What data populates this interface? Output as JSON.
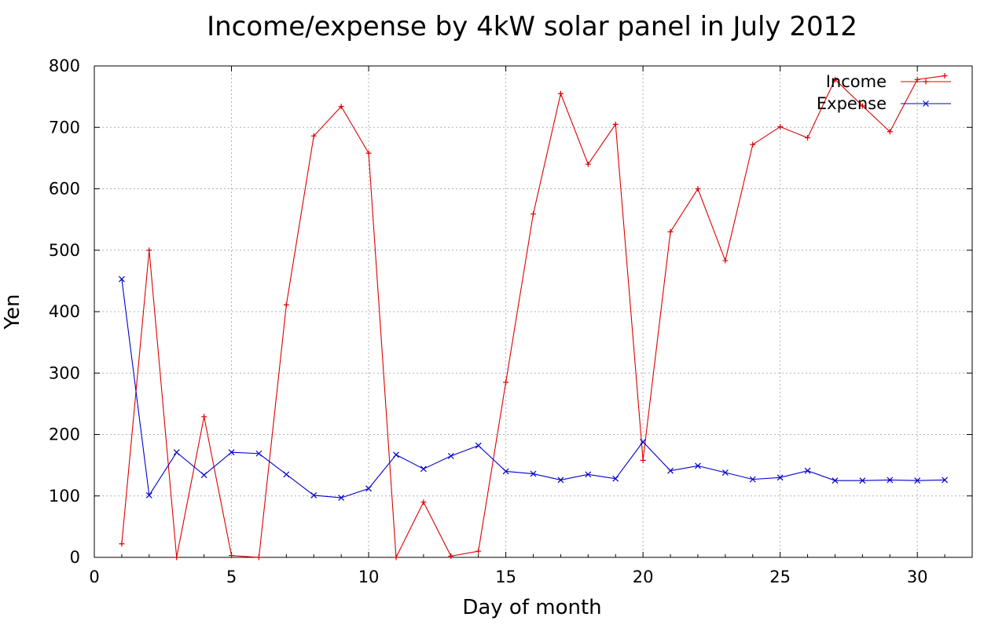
{
  "chart_data": {
    "type": "line",
    "title": "Income/expense by 4kW solar panel in July 2012",
    "xlabel": "Day of month",
    "ylabel": "Yen",
    "xlim": [
      0,
      32
    ],
    "ylim": [
      0,
      800
    ],
    "x_ticks": [
      0,
      5,
      10,
      15,
      20,
      25,
      30
    ],
    "y_ticks": [
      0,
      100,
      200,
      300,
      400,
      500,
      600,
      700,
      800
    ],
    "grid": true,
    "legend_position": "top-right",
    "x": [
      1,
      2,
      3,
      4,
      5,
      6,
      7,
      8,
      9,
      10,
      11,
      12,
      13,
      14,
      15,
      16,
      17,
      18,
      19,
      20,
      21,
      22,
      23,
      24,
      25,
      26,
      27,
      28,
      29,
      30,
      31
    ],
    "series": [
      {
        "name": "Income",
        "color": "#dd0000",
        "marker": "plus",
        "values": [
          22,
          500,
          0,
          229,
          3,
          0,
          411,
          686,
          734,
          658,
          0,
          90,
          2,
          10,
          285,
          559,
          755,
          640,
          705,
          158,
          530,
          600,
          483,
          672,
          701,
          683,
          778,
          735,
          693,
          778,
          784
        ]
      },
      {
        "name": "Expense",
        "color": "#0000cc",
        "marker": "cross",
        "values": [
          453,
          101,
          171,
          134,
          171,
          169,
          135,
          101,
          97,
          112,
          167,
          144,
          165,
          182,
          140,
          136,
          126,
          135,
          128,
          188,
          141,
          149,
          138,
          127,
          130,
          141,
          125,
          125,
          126,
          125,
          126
        ]
      }
    ]
  }
}
